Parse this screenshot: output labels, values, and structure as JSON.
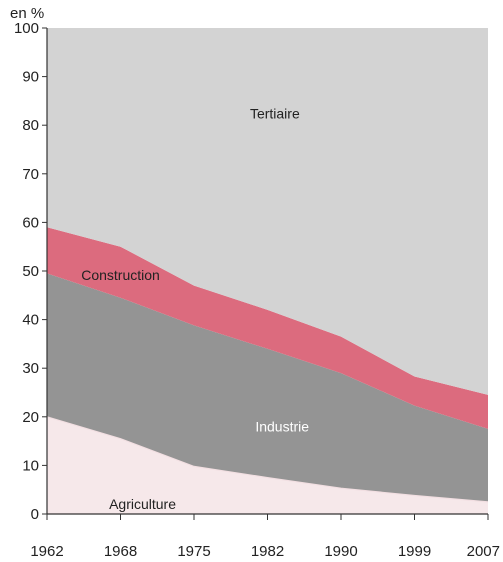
{
  "chart_data": {
    "type": "area",
    "stacked": true,
    "unit_label": "en %",
    "x": [
      "1962",
      "1968",
      "1975",
      "1982",
      "1990",
      "1999",
      "2007"
    ],
    "ylim": [
      0,
      100
    ],
    "yticks": [
      0,
      10,
      20,
      30,
      40,
      50,
      60,
      70,
      80,
      90,
      100
    ],
    "grid": false,
    "series": [
      {
        "name": "Agriculture",
        "color": "#f6e8ea",
        "values": [
          20,
          15.5,
          9.8,
          7.5,
          5.3,
          3.8,
          2.5
        ]
      },
      {
        "name": "Industrie",
        "color": "#949494",
        "values": [
          29.5,
          29,
          29,
          26.5,
          23.7,
          18.5,
          15
        ]
      },
      {
        "name": "Construction",
        "color": "#dc6b7e",
        "values": [
          9.5,
          10.5,
          8.2,
          8,
          7.5,
          6,
          7
        ]
      },
      {
        "name": "Tertiaire",
        "color": "#d3d3d3",
        "values": [
          41,
          45,
          53,
          58,
          63.5,
          71.7,
          75.5
        ]
      }
    ]
  }
}
